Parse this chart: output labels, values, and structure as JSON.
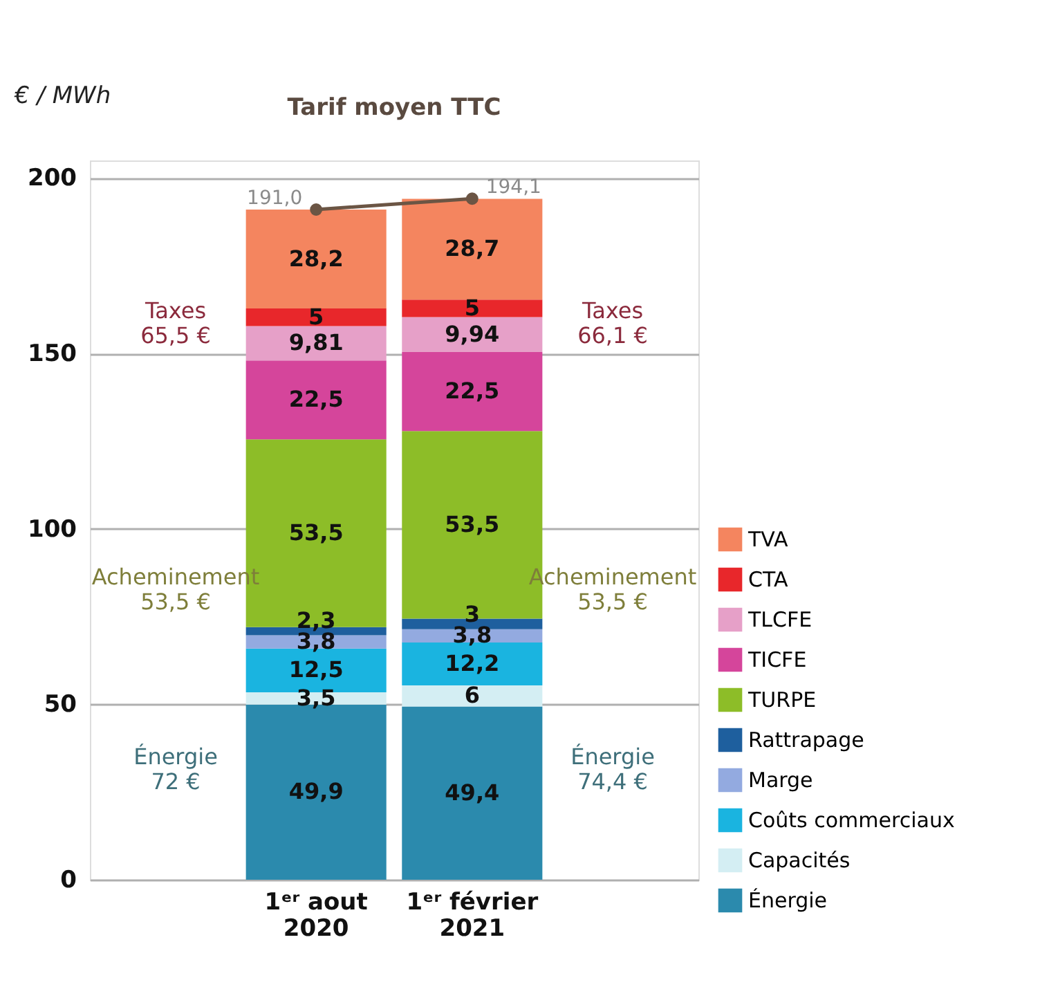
{
  "chart_data": {
    "type": "bar",
    "stacked": true,
    "ylabel": "€ / MWh",
    "categories": [
      "1ᵉʳ aout\n2020",
      "1ᵉʳ février\n2021"
    ],
    "ylim": [
      0,
      205
    ],
    "yticks": [
      0,
      50,
      100,
      150,
      200
    ],
    "grid": "y",
    "legend": "bottom right",
    "series": [
      {
        "name": "Énergie",
        "color": "#2b8aad",
        "values": [
          49.9,
          49.4
        ],
        "value_labels": [
          "49,9",
          "49,4"
        ]
      },
      {
        "name": "Capacités",
        "color": "#d4eef3",
        "values": [
          3.5,
          6
        ],
        "value_labels": [
          "3,5",
          "6"
        ]
      },
      {
        "name": "Coûts commerciaux",
        "color": "#1ab4e0",
        "values": [
          12.5,
          12.2
        ],
        "value_labels": [
          "12,5",
          "12,2"
        ]
      },
      {
        "name": "Marge",
        "color": "#93aae0",
        "values": [
          3.8,
          3.8
        ],
        "value_labels": [
          "3,8",
          "3,8"
        ]
      },
      {
        "name": "Rattrapage",
        "color": "#1e5f9e",
        "values": [
          2.3,
          3
        ],
        "value_labels": [
          "2,3",
          "3"
        ]
      },
      {
        "name": "TURPE",
        "color": "#8dbd28",
        "values": [
          53.5,
          53.5
        ],
        "value_labels": [
          "53,5",
          "53,5"
        ]
      },
      {
        "name": "TICFE",
        "color": "#d5459b",
        "values": [
          22.5,
          22.5
        ],
        "value_labels": [
          "22,5",
          "22,5"
        ]
      },
      {
        "name": "TLCFE",
        "color": "#e6a0c8",
        "values": [
          9.81,
          9.94
        ],
        "value_labels": [
          "9,81",
          "9,94"
        ]
      },
      {
        "name": "CTA",
        "color": "#e8272b",
        "values": [
          5,
          5
        ],
        "value_labels": [
          "5",
          "5"
        ]
      },
      {
        "name": "TVA",
        "color": "#f4855f",
        "values": [
          28.2,
          28.7
        ],
        "value_labels": [
          "28,2",
          "28,7"
        ]
      },
      {
        "name": "Tarif moyen TTC",
        "type": "line",
        "color": "#6b5544",
        "marker": "circle",
        "line_style": "solid",
        "values": [
          191.0,
          194.1
        ],
        "value_labels": [
          "191,0",
          "194,1"
        ]
      }
    ],
    "annotations": [
      "Taxes\n65,5 €",
      "Taxes\n66,1 €",
      "Acheminement\n53,5 €",
      "Acheminement\n53,5 €",
      "Énergie\n72 €",
      "Énergie\n74,4 €"
    ]
  }
}
